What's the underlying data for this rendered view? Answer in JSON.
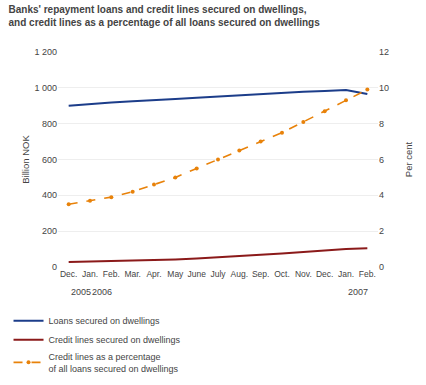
{
  "chart_data": {
    "type": "line",
    "title": "Banks' repayment loans and credit lines secured on dwellings,\nand credit lines as a percentage of all loans secured on dwellings",
    "ylabel": "Billion NOK",
    "y2label": "Per cent",
    "categories": [
      "Dec.",
      "Jan.",
      "Feb.",
      "Mar.",
      "Apr.",
      "May",
      "June",
      "July",
      "Aug.",
      "Sep.",
      "Oct.",
      "Nov.",
      "Dec.",
      "Jan.",
      "Feb."
    ],
    "series": [
      {
        "name": "Loans secured on dwellings",
        "color": "#1C3D8A",
        "line_style": "solid",
        "values": [
          900,
          910,
          918,
          925,
          930,
          938,
          945,
          952,
          960,
          967,
          972,
          978,
          983,
          988,
          965
        ]
      },
      {
        "name": "Credit lines secured on dwellings",
        "color": "#8B1A1A",
        "line_style": "solid",
        "values": [
          28,
          30,
          32,
          35,
          38,
          42,
          47,
          53,
          60,
          68,
          76,
          85,
          93,
          100,
          105
        ]
      },
      {
        "name": "Credit lines as a percentage\nof all loans secured on dwellings",
        "color": "#E8820A",
        "line_style": "dashed",
        "marker": "circle",
        "axis": "y2",
        "values": [
          3.5,
          3.7,
          3.9,
          4.2,
          4.6,
          5.0,
          5.5,
          6.0,
          6.5,
          7.0,
          7.5,
          8.1,
          8.7,
          9.3,
          9.9
        ]
      }
    ],
    "ylim": [
      0,
      1200
    ],
    "yticks": [
      0,
      200,
      400,
      600,
      800,
      {
        "value": 1000,
        "label": "1 000"
      },
      {
        "value": 1200,
        "label": "1 200"
      }
    ],
    "y2lim": [
      0,
      12
    ],
    "y2ticks": [
      0,
      2,
      4,
      6,
      8,
      10,
      12
    ],
    "annotations": [
      {
        "x": 0,
        "text": "2005"
      },
      {
        "x": 1,
        "text": "2006"
      },
      {
        "x": 13,
        "text": "2007"
      }
    ],
    "grid": true,
    "legend": "lower left"
  }
}
